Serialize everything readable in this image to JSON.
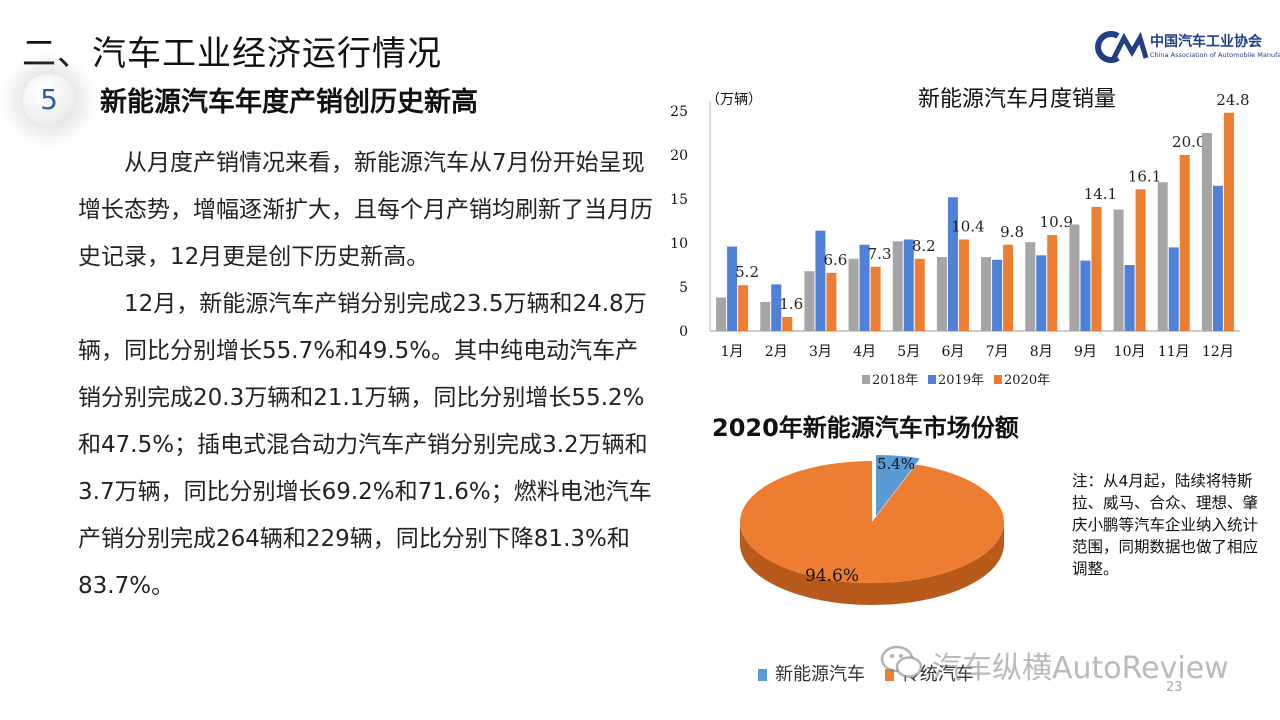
{
  "header": {
    "section_title": "二、汽车工业经济运行情况",
    "logo_cn": "中国汽车工业协会",
    "logo_en": "China Association of Automobile Manufacturers"
  },
  "slide": {
    "number": "5",
    "subtitle": "新能源汽车年度产销创历史新高",
    "paragraphs": [
      "从月度产销情况来看，新能源汽车从7月份开始呈现增长态势，增幅逐渐扩大，且每个月产销均刷新了当月历史记录，12月更是创下历史新高。",
      "12月，新能源汽车产销分别完成23.5万辆和24.8万辆，同比分别增长55.7%和49.5%。其中纯电动汽车产销分别完成20.3万辆和21.1万辆，同比分别增长55.2%和47.5%；插电式混合动力汽车产销分别完成3.2万辆和3.7万辆，同比分别增长69.2%和71.6%；燃料电池汽车产销分别完成264辆和229辆，同比分别下降81.3%和83.7%。"
    ],
    "page_number": "23"
  },
  "chart_data": [
    {
      "type": "bar",
      "title": "新能源汽车月度销量",
      "ylabel": "（万辆）",
      "xlabel": "",
      "ylim": [
        0,
        25
      ],
      "yticks": [
        "0",
        "5",
        "10",
        "15",
        "20",
        "25"
      ],
      "categories": [
        "1月",
        "2月",
        "3月",
        "4月",
        "5月",
        "6月",
        "7月",
        "8月",
        "9月",
        "10月",
        "11月",
        "12月"
      ],
      "series": [
        {
          "name": "2018年",
          "color": "#a5a5a5",
          "values": [
            3.8,
            3.3,
            6.8,
            8.2,
            10.2,
            8.4,
            8.4,
            10.1,
            12.1,
            13.8,
            16.9,
            22.5
          ]
        },
        {
          "name": "2019年",
          "color": "#4f81d8",
          "values": [
            9.6,
            5.3,
            11.4,
            9.8,
            10.4,
            15.2,
            8.1,
            8.6,
            8.0,
            7.5,
            9.5,
            16.5
          ]
        },
        {
          "name": "2020年",
          "color": "#ed7d31",
          "values": [
            5.2,
            1.6,
            6.6,
            7.3,
            8.2,
            10.4,
            9.8,
            10.9,
            14.1,
            16.1,
            20.0,
            24.8
          ]
        }
      ],
      "data_labels": [
        "5.2",
        "1.6",
        "6.6",
        "7.3",
        "8.2",
        "10.4",
        "9.8",
        "10.9",
        "14.1",
        "16.1",
        "20.0",
        "24.8"
      ],
      "legend": "bottom"
    },
    {
      "type": "pie",
      "title": "2020年新能源汽车市场份额",
      "categories": [
        "新能源汽车",
        "传统汽车"
      ],
      "values": [
        5.4,
        94.6
      ],
      "labels": [
        "5.4%",
        "94.6%"
      ],
      "colors": [
        "#5b9bd5",
        "#ed7d31"
      ]
    }
  ],
  "note": "注：从4月起，陆续将特斯拉、威马、合众、理想、肇庆小鹏等汽车企业纳入统计范围，同期数据也做了相应调整。",
  "pie_legend": {
    "label_new": "新能源汽车",
    "label_trad": "传统汽车"
  },
  "watermark": "汽车纵横AutoReview"
}
